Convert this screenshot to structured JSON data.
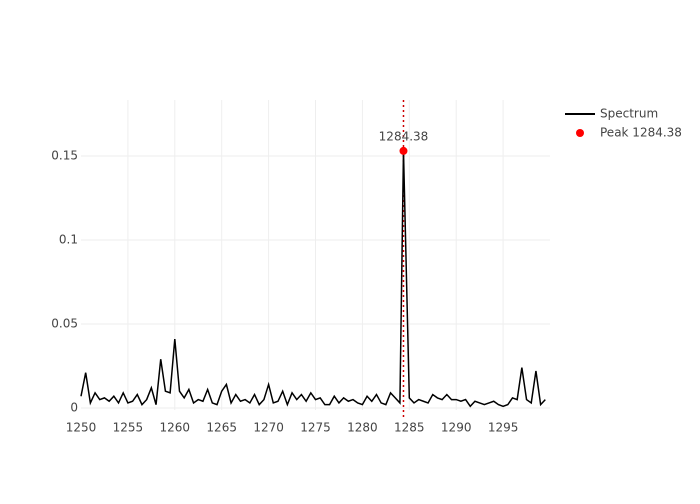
{
  "chart_data": {
    "type": "line",
    "series": [
      {
        "name": "Spectrum",
        "color": "#000000",
        "mode": "lines",
        "x": [
          1250,
          1250.5,
          1251,
          1251.5,
          1252,
          1252.5,
          1253,
          1253.5,
          1254,
          1254.5,
          1255,
          1255.5,
          1256,
          1256.5,
          1257,
          1257.5,
          1258,
          1258.5,
          1259,
          1259.5,
          1260,
          1260.5,
          1261,
          1261.5,
          1262,
          1262.5,
          1263,
          1263.5,
          1264,
          1264.5,
          1265,
          1265.5,
          1266,
          1266.5,
          1267,
          1267.5,
          1268,
          1268.5,
          1269,
          1269.5,
          1270,
          1270.5,
          1271,
          1271.5,
          1272,
          1272.5,
          1273,
          1273.5,
          1274,
          1274.5,
          1275,
          1275.5,
          1276,
          1276.5,
          1277,
          1277.5,
          1278,
          1278.5,
          1279,
          1279.5,
          1280,
          1280.5,
          1281,
          1281.5,
          1282,
          1282.5,
          1283,
          1283.5,
          1284,
          1284.38,
          1285,
          1285.5,
          1286,
          1286.5,
          1287,
          1287.5,
          1288,
          1288.5,
          1289,
          1289.5,
          1290,
          1290.5,
          1291,
          1291.5,
          1292,
          1292.5,
          1293,
          1293.5,
          1294,
          1294.5,
          1295,
          1295.5,
          1296,
          1296.5,
          1297,
          1297.5,
          1298,
          1298.5,
          1299,
          1299.5
        ],
        "values": [
          0.007,
          0.021,
          0.003,
          0.009,
          0.005,
          0.006,
          0.004,
          0.007,
          0.003,
          0.009,
          0.003,
          0.004,
          0.008,
          0.002,
          0.005,
          0.012,
          0.002,
          0.029,
          0.01,
          0.009,
          0.041,
          0.01,
          0.006,
          0.011,
          0.003,
          0.005,
          0.004,
          0.011,
          0.003,
          0.002,
          0.01,
          0.014,
          0.003,
          0.008,
          0.004,
          0.005,
          0.003,
          0.008,
          0.002,
          0.005,
          0.014,
          0.003,
          0.004,
          0.01,
          0.002,
          0.009,
          0.005,
          0.008,
          0.004,
          0.009,
          0.005,
          0.006,
          0.002,
          0.002,
          0.007,
          0.003,
          0.006,
          0.004,
          0.005,
          0.003,
          0.002,
          0.007,
          0.004,
          0.008,
          0.003,
          0.002,
          0.009,
          0.006,
          0.003,
          0.153,
          0.006,
          0.003,
          0.005,
          0.004,
          0.003,
          0.008,
          0.006,
          0.005,
          0.008,
          0.005,
          0.005,
          0.004,
          0.005,
          0.001,
          0.004,
          0.003,
          0.002,
          0.003,
          0.004,
          0.002,
          0.001,
          0.002,
          0.006,
          0.005,
          0.024,
          0.005,
          0.003,
          0.022,
          0.002,
          0.005
        ]
      },
      {
        "name": "Peak 1284.38",
        "color": "#ff0000",
        "mode": "markers",
        "x": [
          1284.38
        ],
        "values": [
          0.153
        ]
      }
    ],
    "annotations": [
      {
        "text": "1284.38",
        "x": 1284.38,
        "y": 0.153
      }
    ],
    "vline": {
      "x": 1284.38,
      "color": "#cc0000"
    },
    "xlim": [
      1250,
      1300
    ],
    "ylim": [
      -0.0012,
      0.1833
    ],
    "xticks": [
      1250,
      1255,
      1260,
      1265,
      1270,
      1275,
      1280,
      1285,
      1290,
      1295
    ],
    "yticks": [
      0,
      0.05,
      0.1,
      0.15
    ],
    "grid": true
  }
}
